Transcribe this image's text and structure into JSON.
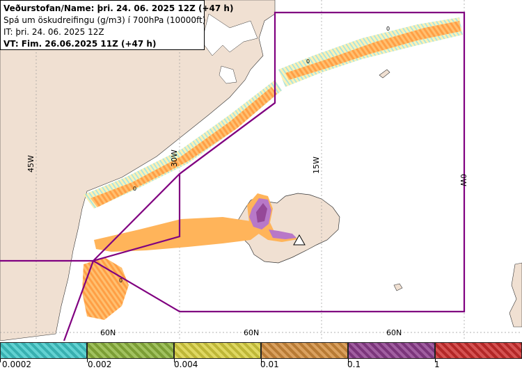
{
  "info": {
    "line1": "Veðurstofan/Name: þri. 24. 06. 2025 12Z (+47 h)",
    "line2": "Spá um öskudreifingu (g/m3) í 700hPa (10000ft)",
    "line3": "IT: þri. 24. 06. 2025 12Z",
    "line4": "VT: Fim. 26.06.2025 11Z (+47 h)"
  },
  "grid_labels": {
    "lon_45": "45W",
    "lon_30": "30W",
    "lon_15": "15W",
    "lon_0": "0W",
    "lat_60_a": "60N",
    "lat_60_b": "60N",
    "lat_60_c": "60N"
  },
  "contour_zero": "0",
  "legend": {
    "items": [
      {
        "label": "0.0002",
        "color": "#40c8c8"
      },
      {
        "label": "0.002",
        "color": "#8cb43c"
      },
      {
        "label": "0.004",
        "color": "#d8d040"
      },
      {
        "label": "0.01",
        "color": "#d28c3c"
      },
      {
        "label": "0.1",
        "color": "#8c3c8c"
      },
      {
        "label": "1",
        "color": "#cc2c2c"
      }
    ]
  },
  "colors": {
    "land": "#f0e0d2",
    "sea": "#ffffff",
    "ash_low": "#ffe88c",
    "ash_mid": "#ffb45a",
    "ash_high": "#b878c8",
    "ash_vhigh": "#8c3c8c",
    "boundary": "#800080"
  }
}
